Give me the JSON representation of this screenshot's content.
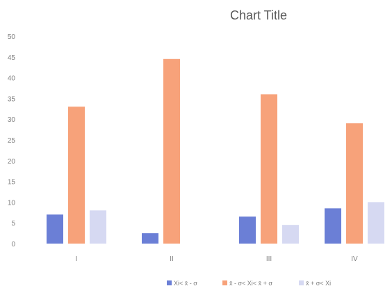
{
  "chart_data": {
    "type": "bar",
    "title": "Chart Title",
    "categories": [
      "I",
      "II",
      "III",
      "IV"
    ],
    "series": [
      {
        "name": "Xi< x̄ - σ",
        "color": "#6b7fd6",
        "values": [
          7,
          2.5,
          6.5,
          8.5
        ]
      },
      {
        "name": "x̄ - σ< Xi< x̄ + σ",
        "color": "#f7a27a",
        "values": [
          33,
          44.5,
          36,
          29
        ]
      },
      {
        "name": "x̄ + σ< Xi",
        "color": "#d6d9f2",
        "values": [
          8,
          null,
          4.5,
          10
        ]
      }
    ],
    "y_ticks": [
      "0",
      "5",
      "10",
      "15",
      "20",
      "25",
      "30",
      "35",
      "40",
      "45",
      "50"
    ],
    "ylim": [
      0,
      50
    ],
    "grid": false,
    "legend": "bottom"
  }
}
